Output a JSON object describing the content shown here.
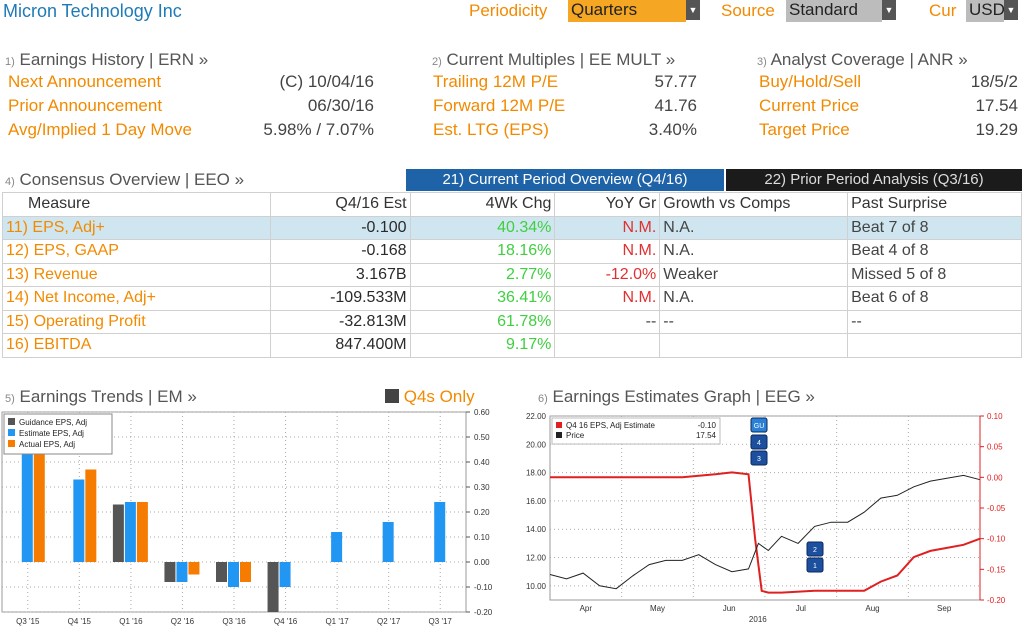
{
  "header": {
    "company": "Micron Technology Inc",
    "periodicity_label": "Periodicity",
    "periodicity_value": "Quarters",
    "source_label": "Source",
    "source_value": "Standard",
    "cur_label": "Cur",
    "cur_value": "USD"
  },
  "earnings_history": {
    "num": "1)",
    "title": "Earnings History | ERN »",
    "rows": [
      {
        "label": "Next Announcement",
        "value": "(C)  10/04/16"
      },
      {
        "label": "Prior Announcement",
        "value": "06/30/16"
      },
      {
        "label": "Avg/Implied 1 Day Move",
        "value": "5.98% / 7.07%"
      }
    ]
  },
  "current_multiples": {
    "num": "2)",
    "title": "Current Multiples | EE MULT »",
    "rows": [
      {
        "label": "Trailing 12M P/E",
        "value": "57.77"
      },
      {
        "label": "Forward 12M P/E",
        "value": "41.76"
      },
      {
        "label": "Est. LTG (EPS)",
        "value": "3.40%"
      }
    ]
  },
  "analyst_coverage": {
    "num": "3)",
    "title": "Analyst Coverage | ANR »",
    "rows": [
      {
        "label": "Buy/Hold/Sell",
        "value": "18/5/2"
      },
      {
        "label": "Current Price",
        "value": "17.54"
      },
      {
        "label": "Target Price",
        "value": "19.29"
      }
    ]
  },
  "consensus": {
    "num": "4)",
    "title": "Consensus Overview | EEO »",
    "tab_current": "21) Current Period Overview (Q4/16)",
    "tab_prior": "22) Prior Period Analysis (Q3/16)",
    "columns": [
      "Measure",
      "Q4/16 Est",
      "4Wk Chg",
      "YoY Gr",
      "Growth vs Comps",
      "Past Surprise"
    ],
    "rows": [
      {
        "num": "11)",
        "measure": "EPS, Adj+",
        "est": "-0.100",
        "chg": "40.34%",
        "yoy": "N.M.",
        "comps": "N.A.",
        "surprise": "Beat 7 of 8"
      },
      {
        "num": "12)",
        "measure": "EPS, GAAP",
        "est": "-0.168",
        "chg": "18.16%",
        "yoy": "N.M.",
        "comps": "N.A.",
        "surprise": "Beat 4 of 8"
      },
      {
        "num": "13)",
        "measure": "Revenue",
        "est": "3.167B",
        "chg": "2.77%",
        "yoy": "-12.0%",
        "comps": "Weaker",
        "surprise": "Missed 5 of 8"
      },
      {
        "num": "14)",
        "measure": "Net Income, Adj+",
        "est": "-109.533M",
        "chg": "36.41%",
        "yoy": "N.M.",
        "comps": "N.A.",
        "surprise": "Beat 6 of 8"
      },
      {
        "num": "15)",
        "measure": "Operating Profit",
        "est": "-32.813M",
        "chg": "61.78%",
        "yoy": "--",
        "comps": "--",
        "surprise": "--"
      },
      {
        "num": "16)",
        "measure": "EBITDA",
        "est": "847.400M",
        "chg": "9.17%",
        "yoy": "",
        "comps": "",
        "surprise": ""
      }
    ]
  },
  "earnings_trends": {
    "num": "5)",
    "title": "Earnings Trends | EM »",
    "toggle": "Q4s Only"
  },
  "earnings_graph": {
    "num": "6)",
    "title": "Earnings Estimates Graph | EEG »"
  },
  "chart_data": [
    {
      "type": "bar",
      "categories": [
        "Q3 '15",
        "Q4 '15",
        "Q1 '16",
        "Q2 '16",
        "Q3 '16",
        "Q4 '16",
        "Q1 '17",
        "Q2 '17",
        "Q3 '17"
      ],
      "series": [
        {
          "name": "Guidance EPS, Adj",
          "color": "#555555",
          "values": [
            null,
            null,
            0.23,
            -0.08,
            -0.08,
            -0.2,
            null,
            null,
            null
          ]
        },
        {
          "name": "Estimate EPS, Adj",
          "color": "#2196f3",
          "values": [
            0.58,
            0.33,
            0.24,
            -0.08,
            -0.1,
            -0.1,
            0.12,
            0.16,
            0.24
          ]
        },
        {
          "name": "Actual EPS, Adj",
          "color": "#f57c00",
          "values": [
            0.58,
            0.37,
            0.24,
            -0.05,
            -0.08,
            null,
            null,
            null,
            null
          ]
        }
      ],
      "ylim": [
        -0.2,
        0.6
      ],
      "yticks": [
        "0.60",
        "0.50",
        "0.40",
        "0.30",
        "0.20",
        "0.10",
        "0.00",
        "-0.10",
        "-0.20"
      ],
      "legend": "top-left",
      "grid": true
    },
    {
      "type": "line",
      "x_labels": [
        "Apr",
        "May",
        "Jun",
        "Jul",
        "Aug",
        "Sep"
      ],
      "x_sub": "2016",
      "series": [
        {
          "name": "Q4 16 EPS, Adj Estimate",
          "value_label": "-0.10",
          "color": "#e02020",
          "axis": "right",
          "x": [
            0,
            10,
            20,
            30,
            40,
            50,
            55,
            60,
            62,
            64,
            66,
            70,
            80,
            90,
            95,
            100,
            105,
            110,
            115,
            120,
            125,
            130
          ],
          "y": [
            0.0,
            0.0,
            0.0,
            0.0,
            0.0,
            0.005,
            0.008,
            0.005,
            -0.1,
            -0.185,
            -0.188,
            -0.188,
            -0.185,
            -0.185,
            -0.185,
            -0.17,
            -0.16,
            -0.13,
            -0.12,
            -0.115,
            -0.11,
            -0.1
          ]
        },
        {
          "name": "Price",
          "value_label": "17.54",
          "color": "#222222",
          "axis": "left",
          "x": [
            0,
            5,
            10,
            15,
            20,
            25,
            30,
            35,
            40,
            45,
            50,
            55,
            60,
            63,
            66,
            70,
            75,
            80,
            85,
            90,
            95,
            100,
            105,
            110,
            115,
            120,
            125,
            130
          ],
          "y": [
            10.8,
            10.5,
            10.9,
            10.0,
            9.8,
            10.7,
            11.5,
            11.8,
            11.8,
            12.2,
            11.5,
            11.0,
            11.2,
            13.0,
            12.5,
            13.5,
            13.0,
            14.2,
            14.5,
            14.5,
            15.2,
            16.2,
            16.4,
            17.0,
            17.4,
            17.6,
            17.8,
            17.5
          ]
        }
      ],
      "left_ylim": [
        9,
        22
      ],
      "left_ticks": [
        "22.00",
        "20.00",
        "18.00",
        "16.00",
        "14.00",
        "12.00",
        "10.00"
      ],
      "right_ylim": [
        -0.2,
        0.1
      ],
      "right_ticks": [
        "0.10",
        "0.05",
        "0.00",
        "-0.05",
        "-0.10",
        "-0.15",
        "-0.20"
      ],
      "markers": [
        "GU",
        "4",
        "3",
        "2",
        "1"
      ],
      "legend": "top-left"
    }
  ]
}
